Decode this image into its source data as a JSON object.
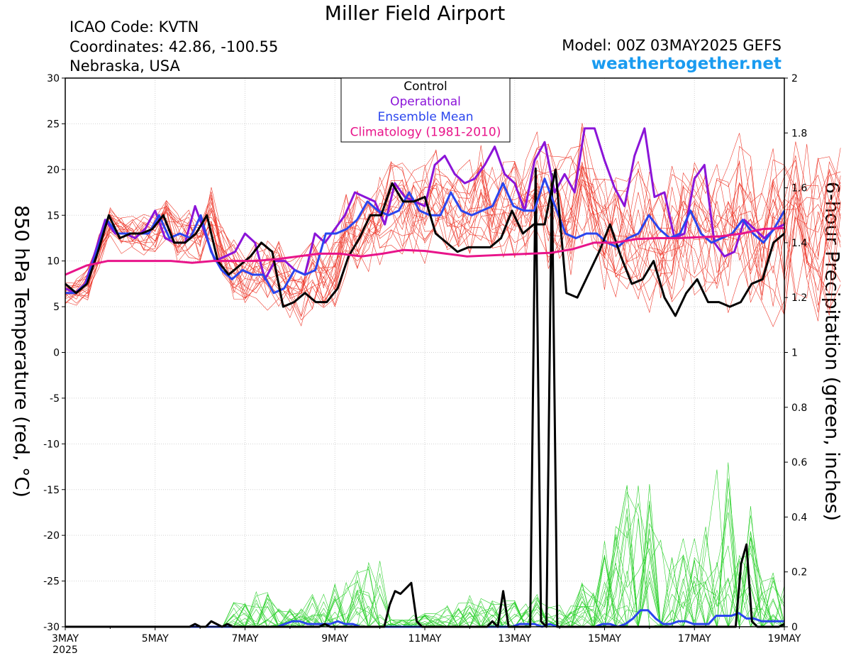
{
  "header": {
    "title": "Miller Field Airport",
    "icao": "ICAO Code: KVTN",
    "coordinates": "Coordinates: 42.86, -100.55",
    "region": "Nebraska, USA",
    "model": "Model: 00Z 03MAY2025 GEFS",
    "site": "weathertogether.net"
  },
  "chart_data": {
    "type": "line",
    "ylabel_left": "850 hPa Temperature (red, °C)",
    "ylabel_right": "6-hour Precipitation (green, inches)",
    "x_ticks": [
      "3MAY",
      "5MAY",
      "7MAY",
      "9MAY",
      "11MAY",
      "13MAY",
      "15MAY",
      "17MAY",
      "19MAY"
    ],
    "x_year_label": "2025",
    "x_range_days": [
      0,
      16
    ],
    "x_step_days": 0.25,
    "ylim_left": [
      -30,
      30
    ],
    "yticks_left": [
      -30,
      -25,
      -20,
      -15,
      -10,
      -5,
      0,
      5,
      10,
      15,
      20,
      25,
      30
    ],
    "ylim_right": [
      0,
      2
    ],
    "yticks_right": [
      "0",
      "0.2",
      "0.4",
      "0.6",
      "0.8",
      "1",
      "1.2",
      "1.4",
      "1.6",
      "1.8",
      "2"
    ],
    "grid": true,
    "legend": {
      "placement": "top-center",
      "entries": [
        {
          "label": "Control",
          "color": "#000000"
        },
        {
          "label": "Operational",
          "color": "#8b14d8"
        },
        {
          "label": "Ensemble Mean",
          "color": "#2a45ee"
        },
        {
          "label": "Climatology (1981-2010)",
          "color": "#e8148a"
        }
      ]
    },
    "colors": {
      "members_temp": "#ee3b2e",
      "members_precip": "#2fd12f",
      "control": "#000000",
      "operational": "#8b14d8",
      "ensemble_mean": "#2a45ee",
      "climatology": "#e8148a"
    },
    "temperature_series": [
      {
        "key": "operational",
        "values": [
          7,
          6.5,
          7.5,
          11,
          14.5,
          13,
          13,
          12.5,
          13.5,
          15.5,
          12.5,
          12,
          12,
          16,
          13,
          10,
          10.5,
          11,
          13,
          12,
          8,
          10,
          10,
          9,
          8.5,
          13,
          12,
          13.5,
          15,
          17.5,
          17,
          16.5,
          14,
          18.5,
          17,
          16.5,
          16,
          20.5,
          21.5,
          19.5,
          18.5,
          19,
          20.5,
          22.5,
          19.5,
          18.5,
          15.5,
          21,
          23,
          17.5,
          19.5,
          17.5,
          24.5,
          24.5,
          21,
          18,
          16,
          21.5,
          24.5,
          17,
          17.5,
          12.5,
          13,
          19,
          20.5,
          12,
          10.5,
          11,
          14.5,
          13.5,
          12.5,
          13.5,
          14
        ]
      },
      {
        "key": "ensemble_mean",
        "values": [
          6.5,
          6.5,
          7.5,
          11,
          14.5,
          13,
          13,
          13,
          13,
          15,
          12.5,
          13,
          12.5,
          15,
          11,
          9,
          8,
          9,
          8.5,
          8.5,
          6.5,
          7,
          9,
          8.5,
          9,
          13,
          13,
          13.5,
          14.5,
          16.5,
          15.5,
          15,
          15.5,
          17.5,
          15.5,
          15,
          15,
          17.5,
          15.5,
          15,
          15.5,
          16,
          18.5,
          16,
          15.5,
          15.5,
          19,
          16,
          13,
          12.5,
          13,
          13,
          12,
          11.5,
          12.5,
          13,
          15,
          13.5,
          12.5,
          13,
          15.5,
          13,
          12,
          12.5,
          13,
          14.5,
          13,
          12,
          13.5,
          15.5
        ]
      },
      {
        "key": "control",
        "values": [
          7.5,
          6.5,
          7.5,
          11,
          15,
          12.5,
          13,
          13,
          13.5,
          15,
          12,
          12,
          13,
          15,
          10,
          8.5,
          9.5,
          10.5,
          12,
          11,
          5,
          5.5,
          6.5,
          5.5,
          5.5,
          7,
          10.5,
          12.5,
          15,
          15,
          18.5,
          16.5,
          16.5,
          17,
          13,
          12,
          11,
          11.5,
          11.5,
          11.5,
          12.5,
          15.5,
          13,
          14,
          14,
          20,
          6.5,
          6,
          8.5,
          11,
          14,
          10.5,
          7.5,
          8,
          10,
          6,
          4,
          6.5,
          8,
          5.5,
          5.5,
          5,
          5.5,
          7.5,
          8,
          12,
          13
        ]
      },
      {
        "key": "climatology",
        "values": [
          8.5,
          9.5,
          10,
          10,
          10,
          10,
          9.8,
          10,
          10,
          10,
          10.2,
          10.5,
          10.8,
          10.8,
          10.5,
          10.8,
          11.2,
          11.1,
          10.8,
          10.5,
          10.6,
          10.7,
          10.8,
          10.9,
          11.3,
          12,
          12,
          12.4,
          12.5,
          12.5,
          12.6,
          12.7,
          13,
          13.5,
          13.6
        ]
      }
    ],
    "precip_series": [
      {
        "key": "control",
        "values": [
          0,
          0,
          0,
          0,
          0,
          0,
          0,
          0,
          0,
          0,
          0,
          0,
          0,
          0,
          0,
          0,
          0,
          0,
          0,
          0,
          0,
          0,
          0,
          0,
          0.01,
          0,
          0,
          0.02,
          0.01,
          0,
          0.01,
          0,
          0,
          0,
          0,
          0,
          0,
          0,
          0,
          0,
          0,
          0,
          0,
          0,
          0,
          0,
          0,
          0,
          0.01,
          0,
          0,
          0,
          0,
          0,
          0,
          0,
          0,
          0,
          0,
          0,
          0.08,
          0.13,
          0.12,
          0.14,
          0.16,
          0.02,
          0,
          0,
          0,
          0,
          0,
          0,
          0,
          0,
          0,
          0,
          0,
          0,
          0,
          0.02,
          0,
          0.13,
          0,
          0,
          0,
          0,
          0,
          1.67,
          0.02,
          0,
          1.65,
          0,
          0,
          0,
          0,
          0,
          0,
          0,
          0,
          0,
          0,
          0,
          0,
          0,
          0,
          0,
          0,
          0,
          0,
          0,
          0,
          0,
          0,
          0,
          0,
          0,
          0,
          0,
          0,
          0,
          0,
          0,
          0,
          0,
          0,
          0.23,
          0.3,
          0.02,
          0,
          0,
          0,
          0,
          0,
          0.01
        ]
      },
      {
        "key": "ensemble_mean",
        "values": [
          0,
          0,
          0,
          0,
          0,
          0,
          0,
          0,
          0,
          0,
          0,
          0,
          0,
          0,
          0,
          0,
          0,
          0,
          0,
          0,
          0,
          0,
          0,
          0,
          0,
          0,
          0,
          0,
          0,
          0.01,
          0.02,
          0.02,
          0.01,
          0.01,
          0.01,
          0.01,
          0.02,
          0.01,
          0.01,
          0,
          0,
          0,
          0,
          0,
          0,
          0,
          0,
          0,
          0,
          0,
          0,
          0,
          0,
          0,
          0,
          0,
          0,
          0,
          0,
          0,
          0.01,
          0.01,
          0.01,
          0,
          0.01,
          0,
          0,
          0,
          0,
          0,
          0,
          0.01,
          0.01,
          0,
          0.01,
          0.03,
          0.06,
          0.06,
          0.03,
          0.01,
          0.01,
          0.02,
          0.02,
          0.01,
          0.01,
          0.01,
          0.04,
          0.04,
          0.04,
          0.05,
          0.03,
          0.03,
          0.02,
          0.02,
          0.02,
          0.02
        ]
      },
      {
        "key": "member_peaks",
        "values": [
          0.09,
          0.13,
          0.07,
          0.12,
          0.17,
          0.24,
          0.03,
          0.05,
          0.09,
          0.12,
          0.1,
          0.12,
          0.08,
          0.16,
          0.41,
          0.55,
          0.35,
          0.37,
          0.6,
          0.5,
          0.2,
          0.14
        ]
      }
    ]
  }
}
